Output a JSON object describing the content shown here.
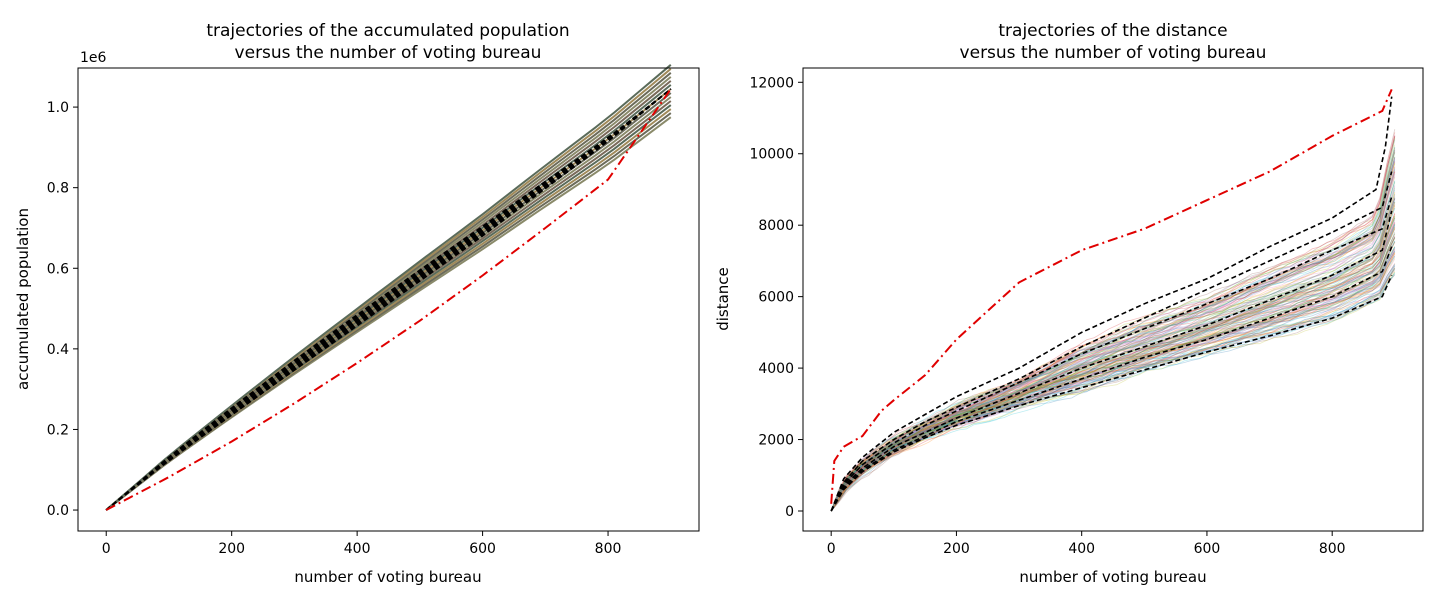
{
  "chart_data": [
    {
      "type": "line",
      "title_line1": "trajectories of the accumulated population",
      "title_line2": "versus the number of voting bureau",
      "xlabel": "number of voting bureau",
      "ylabel": "accumulated population",
      "offset_label": "1e6",
      "xlim": [
        -45,
        945
      ],
      "ylim": [
        -0.052,
        1.097
      ],
      "y_scale": 1000000,
      "xticks": [
        0,
        200,
        400,
        600,
        800
      ],
      "yticks": [
        0.0,
        0.2,
        0.4,
        0.6,
        0.8,
        1.0
      ],
      "ytick_labels": [
        "0.0",
        "0.2",
        "0.4",
        "0.6",
        "0.8",
        "1.0"
      ],
      "grid": false,
      "colors": {
        "highlight": "#e00000",
        "dashed": "#000000"
      },
      "series": [
        {
          "style": "dashdot-red",
          "x": [
            0,
            100,
            200,
            300,
            400,
            500,
            600,
            700,
            800,
            900
          ],
          "y": [
            0,
            82000,
            170000,
            265000,
            365000,
            470000,
            582000,
            700000,
            820000,
            1045000
          ]
        },
        {
          "style": "dashed-black-band",
          "x": [
            0,
            100,
            200,
            300,
            400,
            500,
            600,
            700,
            800,
            900
          ],
          "y": [
            0,
            128000,
            246000,
            361000,
            473000,
            584000,
            694000,
            808000,
            920000,
            1045000
          ]
        }
      ]
    },
    {
      "type": "line",
      "title_line1": "trajectories of the distance",
      "title_line2": "versus the number of voting bureau",
      "xlabel": "number of voting bureau",
      "ylabel": "distance",
      "xlim": [
        -45,
        945
      ],
      "ylim": [
        -560,
        12400
      ],
      "xticks": [
        0,
        200,
        400,
        600,
        800
      ],
      "yticks": [
        0,
        2000,
        4000,
        6000,
        8000,
        10000,
        12000
      ],
      "ytick_labels": [
        "0",
        "2000",
        "4000",
        "6000",
        "8000",
        "10000",
        "12000"
      ],
      "grid": false,
      "colors": {
        "highlight": "#e00000",
        "dashed": "#000000"
      },
      "series": [
        {
          "style": "dashdot-red",
          "x": [
            0,
            5,
            20,
            50,
            80,
            100,
            150,
            200,
            250,
            300,
            400,
            500,
            600,
            700,
            800,
            880,
            895
          ],
          "y": [
            200,
            1400,
            1800,
            2100,
            2800,
            3100,
            3800,
            4800,
            5600,
            6400,
            7300,
            7900,
            8700,
            9500,
            10500,
            11200,
            11800
          ]
        },
        {
          "style": "dashed",
          "x": [
            0,
            20,
            50,
            100,
            150,
            200,
            300,
            400,
            500,
            600,
            700,
            800,
            870,
            885,
            895
          ],
          "y": [
            0,
            900,
            1500,
            2200,
            2700,
            3200,
            4000,
            5000,
            5800,
            6500,
            7400,
            8200,
            9000,
            10200,
            11600
          ]
        },
        {
          "style": "dashed",
          "x": [
            0,
            20,
            50,
            100,
            150,
            200,
            300,
            400,
            500,
            600,
            700,
            800,
            880,
            895
          ],
          "y": [
            0,
            800,
            1400,
            2000,
            2500,
            2900,
            3700,
            4600,
            5400,
            6200,
            7000,
            7800,
            8500,
            9500
          ]
        },
        {
          "style": "dashed",
          "x": [
            0,
            20,
            50,
            100,
            150,
            200,
            300,
            400,
            500,
            600,
            700,
            800,
            880,
            895
          ],
          "y": [
            0,
            750,
            1300,
            1900,
            2400,
            2800,
            3600,
            4400,
            5100,
            5800,
            6500,
            7300,
            7900,
            8800
          ]
        },
        {
          "style": "dashed",
          "x": [
            0,
            20,
            50,
            100,
            150,
            200,
            300,
            400,
            500,
            600,
            700,
            800,
            880,
            895
          ],
          "y": [
            0,
            700,
            1200,
            1800,
            2200,
            2600,
            3300,
            4000,
            4600,
            5200,
            5900,
            6600,
            7300,
            8400
          ]
        },
        {
          "style": "dashed",
          "x": [
            0,
            20,
            50,
            100,
            150,
            200,
            300,
            400,
            500,
            600,
            700,
            800,
            880,
            895
          ],
          "y": [
            0,
            650,
            1150,
            1700,
            2100,
            2500,
            3100,
            3700,
            4300,
            4800,
            5400,
            6000,
            6700,
            7400
          ]
        },
        {
          "style": "dashed",
          "x": [
            0,
            20,
            50,
            100,
            150,
            200,
            300,
            400,
            500,
            600,
            700,
            800,
            880,
            895
          ],
          "y": [
            0,
            600,
            1100,
            1650,
            2050,
            2400,
            2950,
            3450,
            3950,
            4450,
            4900,
            5400,
            6000,
            6600
          ]
        }
      ]
    }
  ]
}
